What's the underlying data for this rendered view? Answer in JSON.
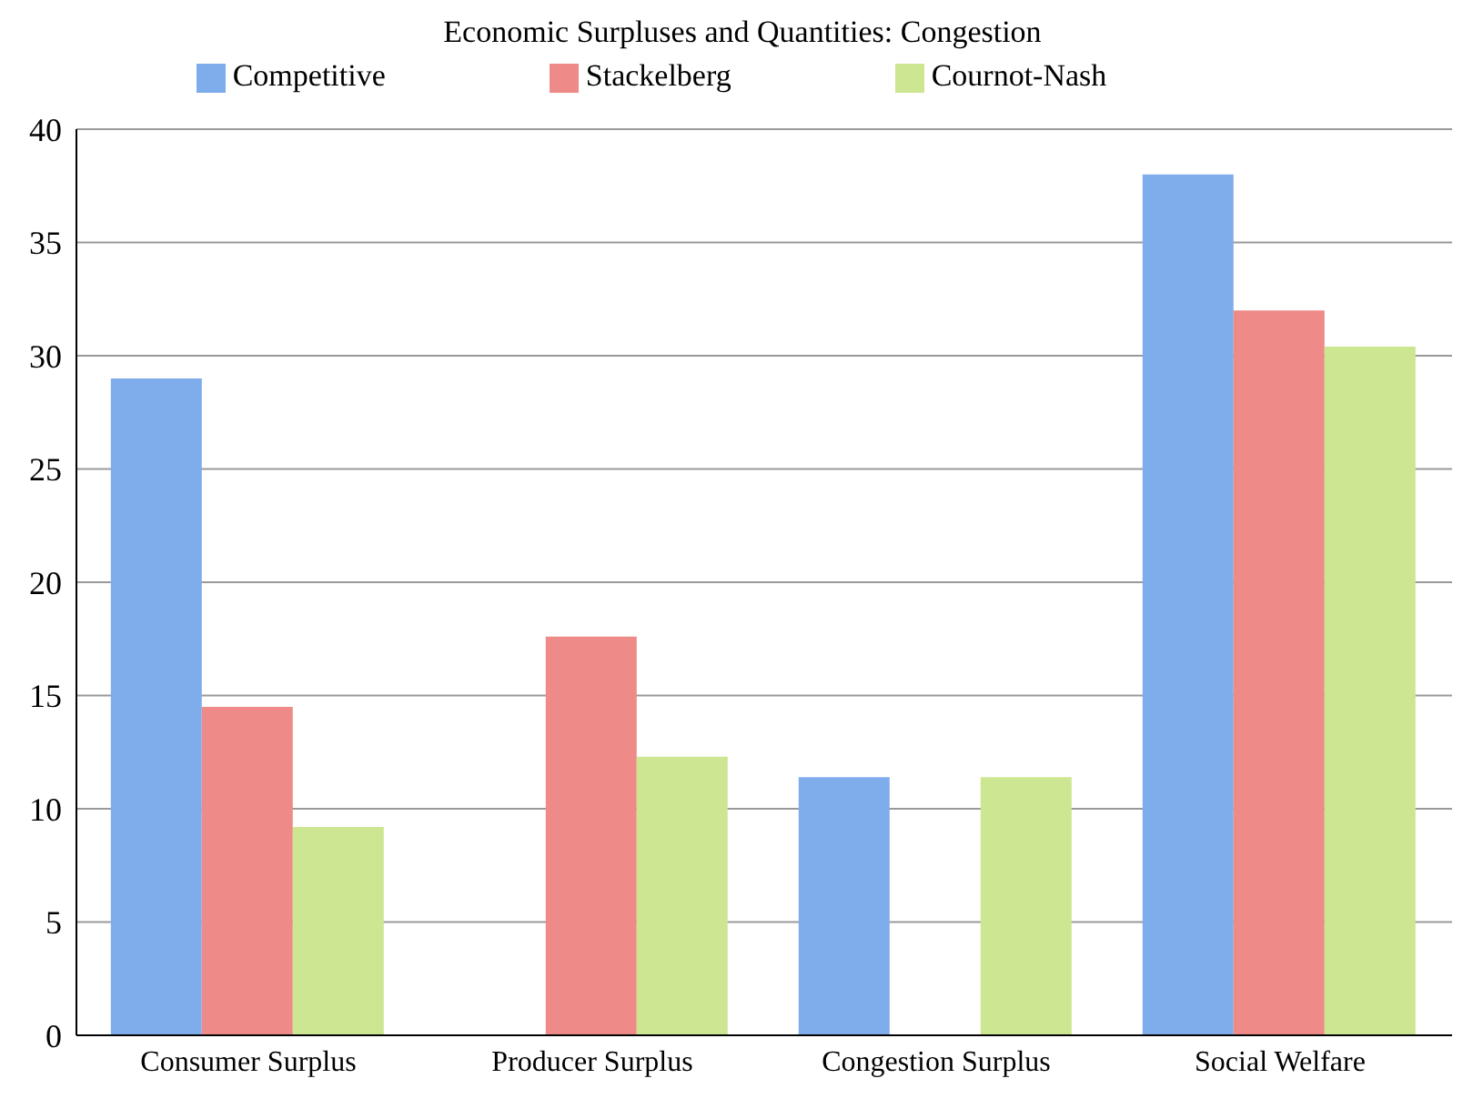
{
  "chart_data": {
    "type": "bar",
    "title": "Economic Surpluses and Quantities: Congestion",
    "categories": [
      "Consumer Surplus",
      "Producer Surplus",
      "Congestion Surplus",
      "Social Welfare"
    ],
    "series": [
      {
        "name": "Competitive",
        "color": "#7fadec",
        "values": [
          29,
          0,
          11.4,
          38
        ]
      },
      {
        "name": "Stackelberg",
        "color": "#ee8a88",
        "values": [
          14.5,
          17.6,
          0,
          32
        ]
      },
      {
        "name": "Cournot-Nash",
        "color": "#cde692",
        "values": [
          9.2,
          12.3,
          11.4,
          30.4
        ]
      }
    ],
    "ylim": [
      0,
      40
    ],
    "yticks": [
      0,
      5,
      10,
      15,
      20,
      25,
      30,
      35,
      40
    ],
    "grid": "y",
    "legend": "top"
  }
}
